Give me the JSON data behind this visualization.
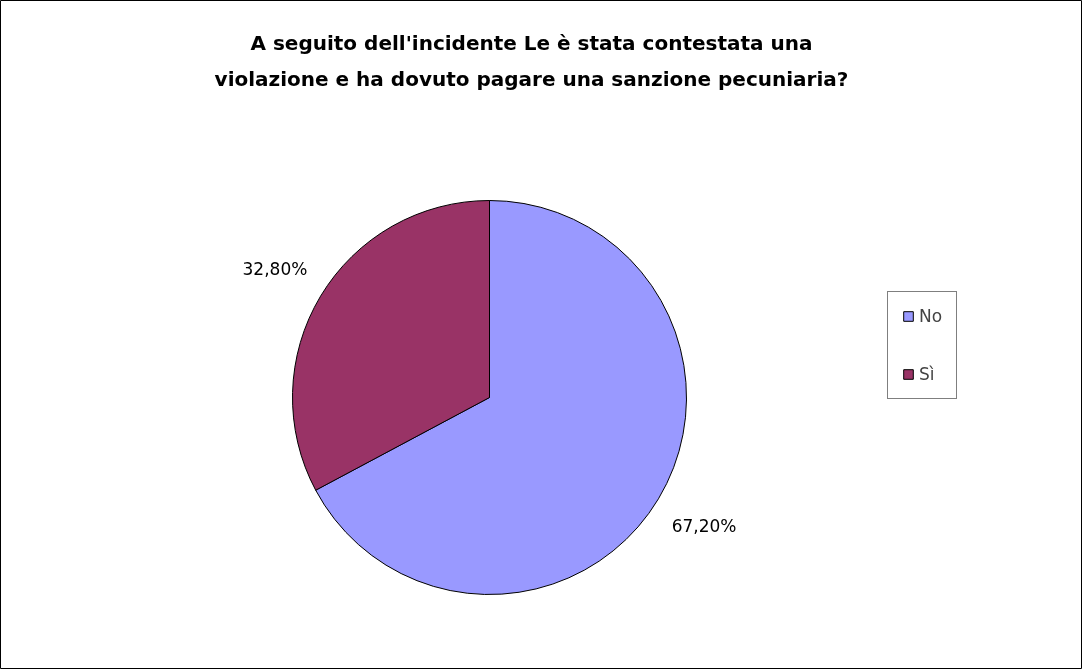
{
  "chart_data": {
    "type": "pie",
    "title": "A seguito dell'incidente Le è stata contestata una\nviolazione e ha dovuto pagare una sanzione pecuniaria?",
    "categories": [
      "No",
      "Sì"
    ],
    "values": [
      67.2,
      32.8
    ],
    "colors": [
      "#9999ff",
      "#993366"
    ],
    "value_labels": [
      "67,20%",
      "32,80%"
    ],
    "legend": "right"
  }
}
